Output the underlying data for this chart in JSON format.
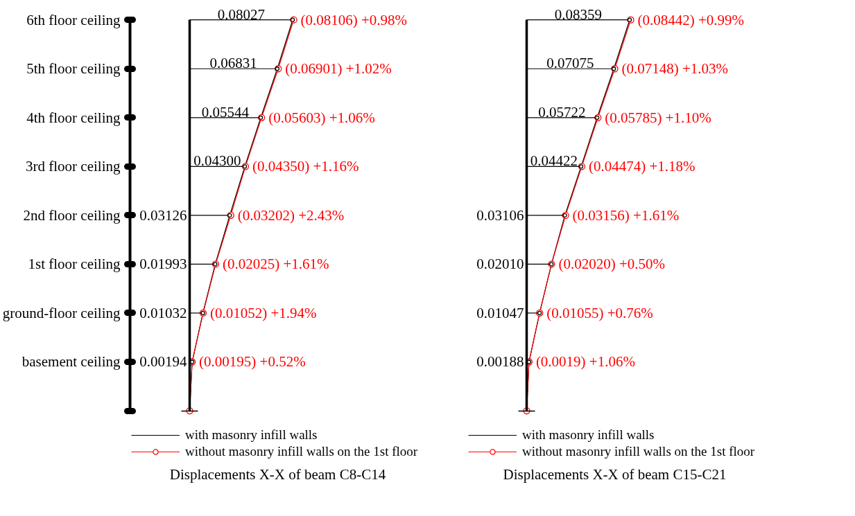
{
  "chart_data": [
    {
      "type": "line",
      "orientation": "horizontal",
      "title": "Displacements X-X of beam C8-C14",
      "categories": [
        "6th floor ceiling",
        "5th floor ceiling",
        "4th floor ceiling",
        "3rd floor ceiling",
        "2nd floor ceiling",
        "1st floor ceiling",
        "ground-floor ceiling",
        "basement ceiling",
        null
      ],
      "series": [
        {
          "name": "with masonry infill walls",
          "color": "#000000",
          "marker": "none",
          "values": [
            0.08027,
            0.06831,
            0.05544,
            0.043,
            0.03126,
            0.01993,
            0.01032,
            0.00194,
            0
          ]
        },
        {
          "name": "without masonry infill walls on the 1st floor",
          "color": "#ff0000",
          "marker": "circle",
          "values": [
            0.08106,
            0.06901,
            0.05603,
            0.0435,
            0.03202,
            0.02025,
            0.01052,
            0.00195,
            0
          ],
          "value_labels": [
            "(0.08106) +0.98%",
            "(0.06901) +1.02%",
            "(0.05603) +1.06%",
            "(0.04350) +1.16%",
            "(0.03202) +2.43%",
            "(0.02025) +1.61%",
            "(0.01052) +1.94%",
            "(0.00195) +0.52%",
            null
          ]
        },
        {
          "type": "lollipop",
          "color": "#000000",
          "marker": "circle",
          "values": [
            0.08027,
            0.06831,
            0.05544,
            0.043,
            0.03126,
            0.01993,
            0.01032,
            0.00194,
            null
          ],
          "value_labels": [
            "0.08027",
            "0.06831",
            "0.05544",
            "0.04300",
            "0.03126",
            "0.01993",
            "0.01032",
            "0.00194",
            null
          ]
        }
      ],
      "legend": "bottom",
      "tick_labels": "y"
    },
    {
      "type": "line",
      "orientation": "horizontal",
      "title": "Displacements X-X of beam C15-C21",
      "categories": [
        null,
        null,
        null,
        null,
        null,
        null,
        null,
        null,
        null
      ],
      "series": [
        {
          "name": "with masonry infill walls",
          "color": "#000000",
          "marker": "none",
          "values": [
            0.08359,
            0.07075,
            0.05722,
            0.04422,
            0.03106,
            0.0201,
            0.01047,
            0.00188,
            0
          ]
        },
        {
          "name": "without masonry infill walls on the 1st floor",
          "color": "#ff0000",
          "marker": "circle",
          "values": [
            0.08442,
            0.07148,
            0.05785,
            0.04474,
            0.03156,
            0.0202,
            0.01055,
            0.0019,
            0
          ],
          "value_labels": [
            "(0.08442) +0.99%",
            "(0.07148) +1.03%",
            "(0.05785) +1.10%",
            "(0.04474) +1.18%",
            "(0.03156) +1.61%",
            "(0.02020) +0.50%",
            "(0.01055) +0.76%",
            "(0.0019) +1.06%",
            null
          ]
        },
        {
          "type": "lollipop",
          "color": "#000000",
          "marker": "circle",
          "values": [
            0.08359,
            0.07075,
            0.05722,
            0.04422,
            0.03106,
            0.0201,
            0.01047,
            0.00188,
            null
          ],
          "value_labels": [
            "0.08359",
            "0.07075",
            "0.05722",
            "0.04422",
            "0.03106",
            "0.02010",
            "0.01047",
            "0.00188",
            null
          ]
        }
      ],
      "legend": "bottom",
      "tick_labels": false
    }
  ]
}
